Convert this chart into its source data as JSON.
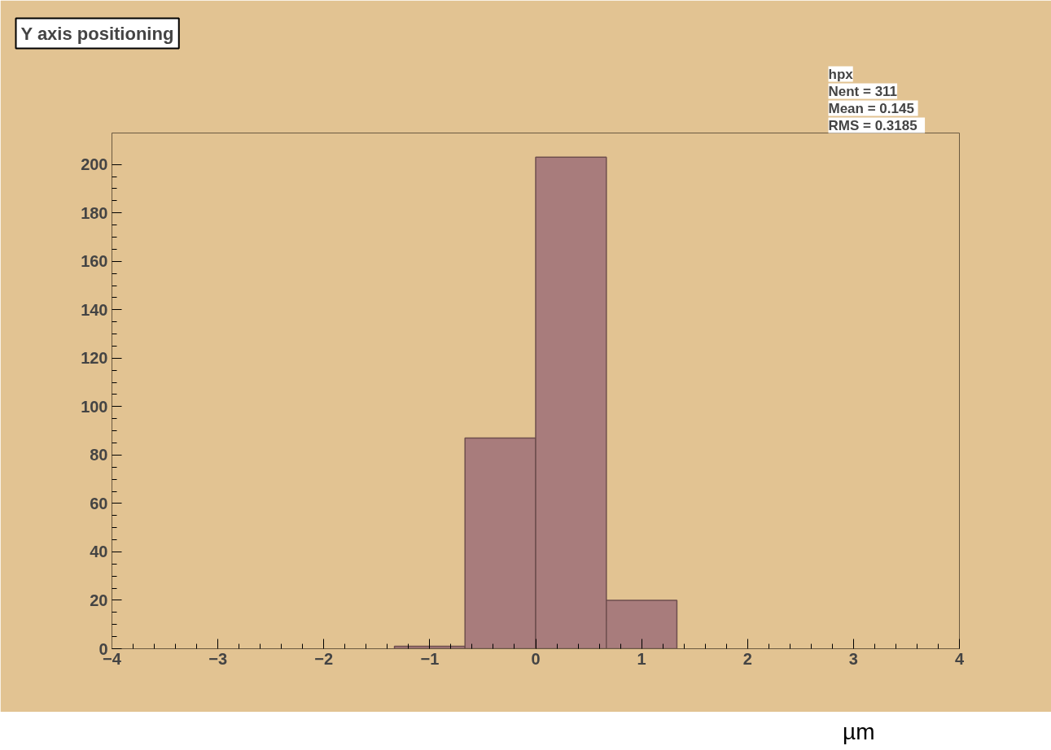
{
  "chart_data": {
    "type": "histogram",
    "title": "Y axis positioning",
    "xlabel": "µm",
    "bins": [
      -4,
      -3.333,
      -2.667,
      -2,
      -1.333,
      -0.667,
      0,
      0.667,
      1.333,
      2,
      2.667,
      3.333,
      4
    ],
    "values": [
      0,
      0,
      0,
      0,
      1,
      87,
      203,
      20,
      0,
      0,
      0,
      0
    ],
    "color": "#a87c7c",
    "xlim": [
      -4,
      4
    ],
    "xticks": [
      -4,
      -3,
      -2,
      -1,
      0,
      1,
      2,
      3,
      4
    ],
    "ylim": [
      0,
      213
    ],
    "yticks": [
      0,
      20,
      40,
      60,
      80,
      100,
      120,
      140,
      160,
      180,
      200
    ],
    "grid": false,
    "annotations": [
      "hpx",
      "Nent = 311",
      "Mean  = 0.145",
      "RMS   = 0.3185"
    ]
  }
}
